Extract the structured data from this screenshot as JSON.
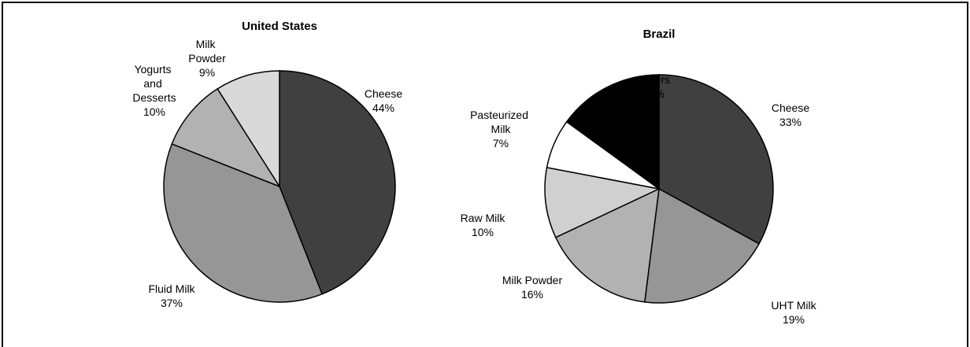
{
  "chart_data": [
    {
      "type": "pie",
      "title": "United States",
      "categories": [
        "Cheese",
        "Fluid Milk",
        "Yogurts and Desserts",
        "Milk Powder"
      ],
      "values": [
        44,
        37,
        10,
        9
      ],
      "value_labels": [
        "44%",
        "37%",
        "10%",
        "9%"
      ],
      "colors": [
        "#404040",
        "#969696",
        "#b2b2b2",
        "#d9d9d9"
      ]
    },
    {
      "type": "pie",
      "title": "Brazil",
      "categories": [
        "Cheese",
        "UHT Milk",
        "Milk Powder",
        "Raw Milk",
        "Pasteurized Milk",
        "Others"
      ],
      "values": [
        33,
        19,
        16,
        10,
        7,
        15
      ],
      "value_labels": [
        "33%",
        "19%",
        "16%",
        "10%",
        "7%",
        "15%"
      ],
      "colors": [
        "#404040",
        "#969696",
        "#b2b2b2",
        "#d0d0d0",
        "#ffffff",
        "#000000"
      ]
    }
  ]
}
